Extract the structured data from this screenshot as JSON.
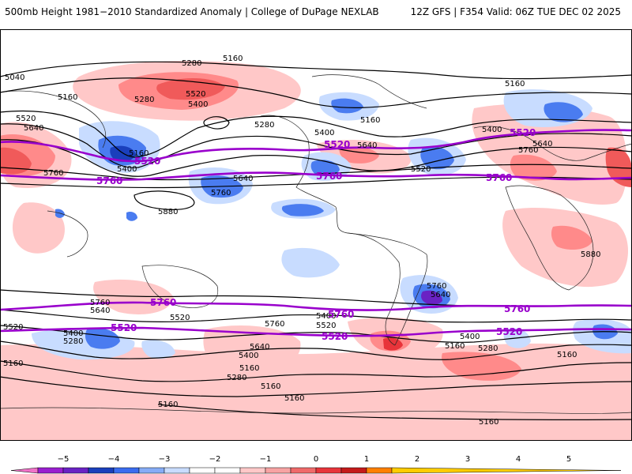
{
  "header": {
    "title": "500mb Height 1981−2010 Standardized Anomaly | College of DuPage NEXLAB",
    "run_info": "12Z GFS | F354 Valid: 06Z TUE DEC 02 2025"
  },
  "colors": {
    "purple_contour": "#9900cc",
    "black_contour": "#000000",
    "positive_light": "#ffc8c8",
    "positive_mid": "#ff7a7a",
    "negative_light": "#c8dcff",
    "negative_mid": "#4a7cf0"
  },
  "contour_labels": {
    "black": [
      "5040",
      "5280",
      "5160",
      "5520",
      "5400",
      "5160",
      "5640",
      "5280",
      "5520",
      "5160",
      "5400",
      "5400",
      "5280",
      "5640",
      "5160",
      "5760",
      "5640",
      "5880",
      "5760",
      "5400",
      "5160",
      "5880",
      "5760",
      "5640",
      "5760",
      "5640",
      "5520",
      "5400",
      "5280",
      "5160",
      "5160",
      "5400",
      "5520",
      "5760",
      "5640",
      "5400",
      "5280",
      "5160",
      "5520",
      "5400",
      "5160",
      "5280",
      "5160",
      "5160",
      "5160",
      "5160",
      "5760",
      "5640",
      "5520"
    ],
    "purple": [
      "5520",
      "5520",
      "5520",
      "5760",
      "5760",
      "5760",
      "5760",
      "5760",
      "5760",
      "5520",
      "5520",
      "5520"
    ]
  },
  "legend": {
    "ticks": [
      "−5",
      "−4",
      "−3",
      "−2",
      "−1",
      "0",
      "1",
      "2",
      "3",
      "4",
      "5"
    ],
    "colors": [
      "#f072c8",
      "#9a1fd0",
      "#6a22c4",
      "#1a3fbc",
      "#3a6cf0",
      "#86acf6",
      "#c8dcff",
      "#ffffff",
      "#ffffff",
      "#ffc8c8",
      "#f7a3a3",
      "#f06a6a",
      "#e8343a",
      "#c41a1a",
      "#ff7f00",
      "#ffcc00"
    ]
  }
}
